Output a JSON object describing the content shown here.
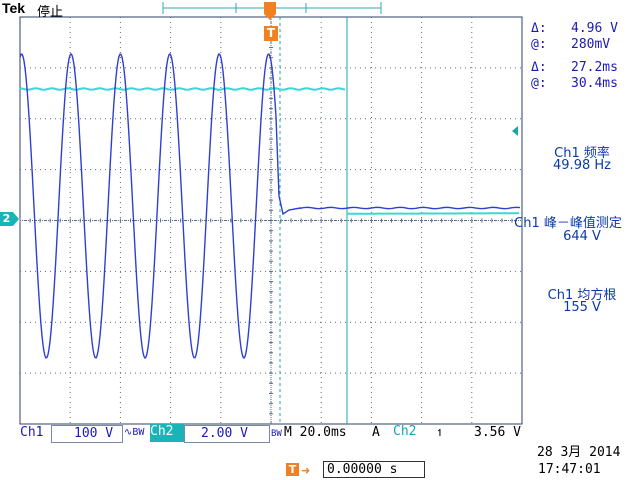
{
  "header": {
    "brand": "Tek",
    "acq_status": "停止"
  },
  "markers": {
    "trigger_marker": "T",
    "ch2_ground_marker": "2"
  },
  "cursors": {
    "v_delta": "Δ:",
    "v_delta_value": "4.96 V",
    "v_at": "@:",
    "v_at_value": "280mV",
    "t_delta": "Δ:",
    "t_delta_value": "27.2ms",
    "t_at": "@:",
    "t_at_value": "30.4ms"
  },
  "measurements": [
    {
      "label": "Ch1 频率",
      "value": "49.98 Hz"
    },
    {
      "label": "Ch1 峰－峰值测定",
      "value": "644 V"
    },
    {
      "label": "Ch1 均方根",
      "value": "155 V"
    }
  ],
  "bottom_bar": {
    "ch1_label": "Ch1",
    "ch1_scale": "100 V",
    "ch1_coupling": "∿BW",
    "ch2_label": "Ch2",
    "ch2_scale": "2.00 V",
    "ch2_coupling": "BW",
    "timebase": "M 20.0ms",
    "trig_mode": "A",
    "trig_source": "Ch2",
    "trig_slope": "↿",
    "trig_level": "3.56 V"
  },
  "trigger_position": {
    "icon": "T→▾",
    "value": "0.00000 s"
  },
  "datetime": {
    "date": "28 3月  2014",
    "time": "17:47:01"
  },
  "colors": {
    "ch1": "#2f3fd0",
    "ch2": "#3ad6d8",
    "grid": "#5a6a8a",
    "cursor": "#18a8a8"
  }
}
